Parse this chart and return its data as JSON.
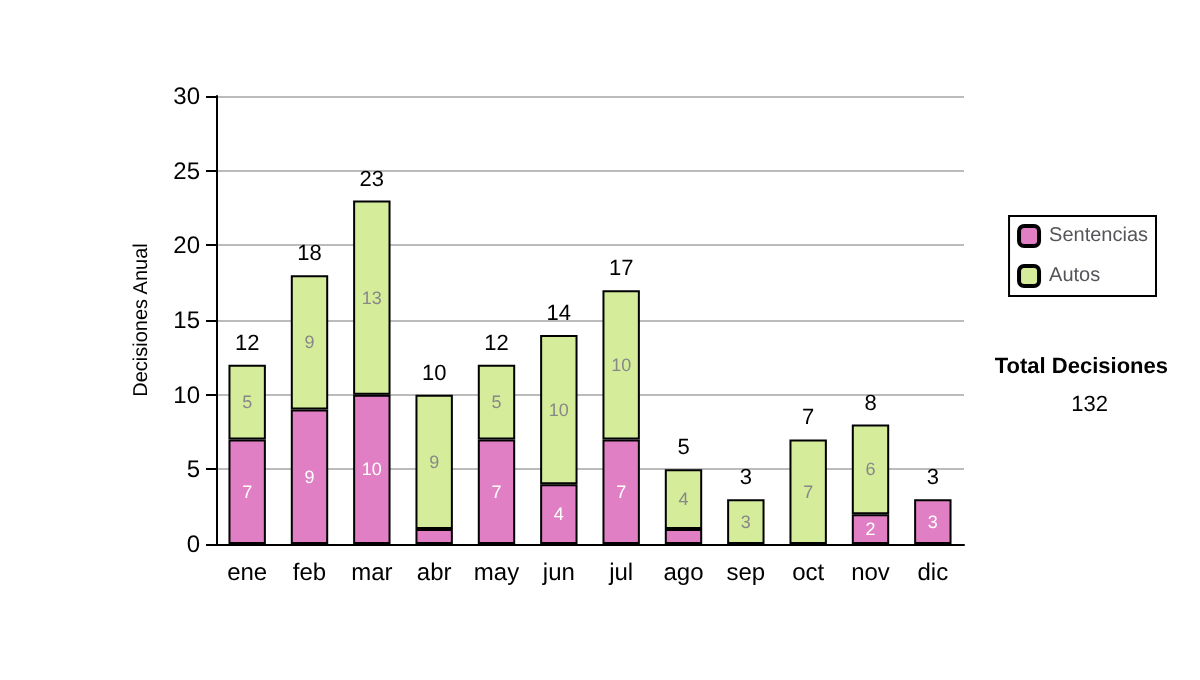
{
  "chart_data": {
    "type": "bar",
    "stacked": true,
    "ylabel": "Decisiones Anual",
    "categories": [
      "ene",
      "feb",
      "mar",
      "abr",
      "may",
      "jun",
      "jul",
      "ago",
      "sep",
      "oct",
      "nov",
      "dic"
    ],
    "series": [
      {
        "name": "Sentencias",
        "color": "#e07fc4",
        "values": [
          7,
          9,
          10,
          1,
          7,
          4,
          7,
          1,
          0,
          0,
          2,
          3
        ],
        "value_labels": [
          "7",
          "9",
          "10",
          null,
          "7",
          "4",
          "7",
          null,
          null,
          null,
          "2",
          "3"
        ]
      },
      {
        "name": "Autos",
        "color": "#d5ec9a",
        "values": [
          5,
          9,
          13,
          9,
          5,
          10,
          10,
          4,
          3,
          7,
          6,
          0
        ],
        "value_labels": [
          "5",
          "9",
          "13",
          "9",
          "5",
          "10",
          "10",
          "4",
          "3",
          "7",
          "6",
          null
        ]
      }
    ],
    "totals": [
      "12",
      "18",
      "23",
      "10",
      "12",
      "14",
      "17",
      "5",
      "3",
      "7",
      "8",
      "3"
    ],
    "ylim": [
      0,
      30
    ],
    "yticks": [
      0,
      5,
      10,
      15,
      20,
      25,
      30
    ],
    "grid": "y",
    "legend": "right",
    "annotations": [
      "Total Decisiones",
      "132"
    ]
  }
}
